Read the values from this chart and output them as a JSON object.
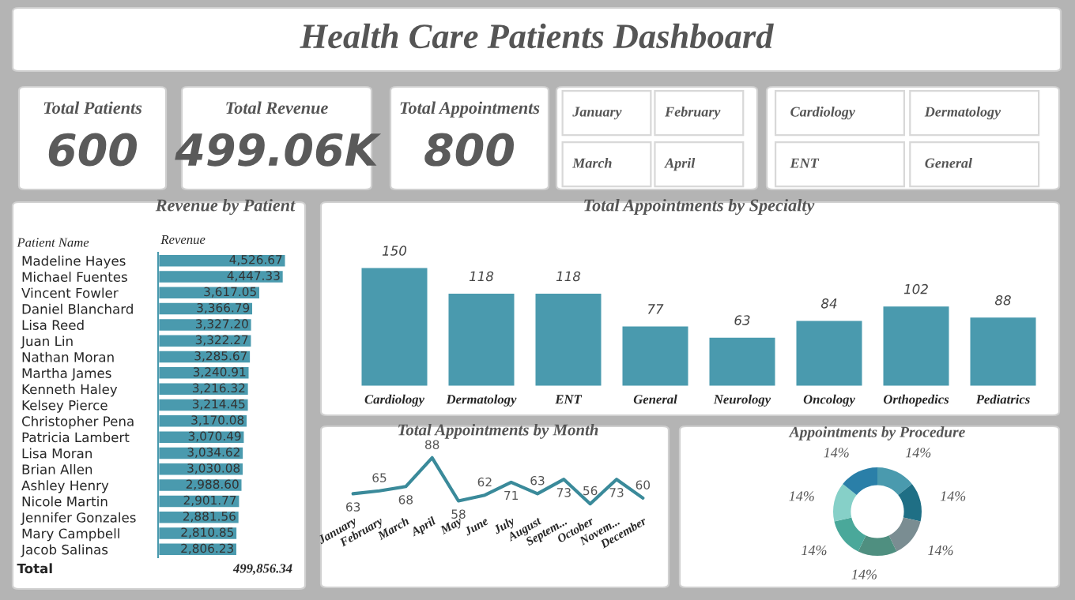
{
  "chart_data": [
    {
      "type": "other",
      "title": "Health Care Patients Dashboard"
    },
    {
      "type": "other",
      "title": "Total Patients",
      "annotations": [
        "600"
      ]
    },
    {
      "type": "other",
      "title": "Total Revenue",
      "annotations": [
        "499.06K"
      ]
    },
    {
      "type": "other",
      "title": "Total Appointments",
      "annotations": [
        "800"
      ]
    },
    {
      "type": "other",
      "annotations": [
        "January",
        "February",
        "March",
        "April"
      ]
    },
    {
      "type": "other",
      "annotations": [
        "Cardiology",
        "Dermatology",
        "ENT",
        "General"
      ]
    },
    {
      "type": "bar",
      "orientation": "horizontal",
      "title": "Revenue by Patient",
      "ylabel": "Patient Name",
      "xlabel": "Revenue",
      "color": "#4a9aae",
      "categories": [
        "Madeline Hayes",
        "Michael Fuentes",
        "Vincent Fowler",
        "Daniel Blanchard",
        "Lisa Reed",
        "Juan Lin",
        "Nathan Moran",
        "Martha James",
        "Kenneth Haley",
        "Kelsey Pierce",
        "Christopher Pena",
        "Patricia Lambert",
        "Lisa Moran",
        "Brian Allen",
        "Ashley Henry",
        "Nicole Martin",
        "Jennifer Gonzales",
        "Mary Campbell",
        "Jacob Salinas"
      ],
      "values": [
        4526.67,
        4447.33,
        3617.05,
        3366.79,
        3327.2,
        3322.27,
        3285.67,
        3240.91,
        3216.32,
        3214.45,
        3170.08,
        3070.49,
        3034.62,
        3030.08,
        2988.6,
        2901.77,
        2881.56,
        2810.85,
        2806.23
      ],
      "value_labels": [
        "4,526.67",
        "4,447.33",
        "3,617.05",
        "3,366.79",
        "3,327.20",
        "3,322.27",
        "3,285.67",
        "3,240.91",
        "3,216.32",
        "3,214.45",
        "3,170.08",
        "3,070.49",
        "3,034.62",
        "3,030.08",
        "2,988.60",
        "2,901.77",
        "2,881.56",
        "2,810.85",
        "2,806.23"
      ],
      "annotations": [
        "Total",
        "499,856.34"
      ]
    },
    {
      "type": "bar",
      "title": "Total Appointments by Specialty",
      "color": "#4a9aae",
      "data_labels": true,
      "categories": [
        "Cardiology",
        "Dermatology",
        "ENT",
        "General",
        "Neurology",
        "Oncology",
        "Orthopedics",
        "Pediatrics"
      ],
      "values": [
        150,
        118,
        118,
        77,
        63,
        84,
        102,
        88
      ]
    },
    {
      "type": "line",
      "title": "Total Appointments by Month",
      "color": "#3a8a9a",
      "data_labels": true,
      "marker": "none",
      "line_style": "solid",
      "categories": [
        "January",
        "February",
        "March",
        "April",
        "May",
        "June",
        "July",
        "August",
        "Septem...",
        "October",
        "Novem...",
        "December"
      ],
      "values": [
        63,
        65,
        68,
        88,
        58,
        62,
        71,
        63,
        73,
        56,
        73,
        60
      ]
    },
    {
      "type": "donut",
      "title": "Appointments by Procedure",
      "categories": [
        null,
        null,
        null,
        null,
        null,
        null,
        null
      ],
      "values": [
        14,
        14,
        14,
        14,
        14,
        14,
        14
      ],
      "value_labels": [
        "14%",
        "14%",
        "14%",
        "14%",
        "14%",
        "14%",
        "14%"
      ],
      "colors": [
        "#4a9aae",
        "#1f6f85",
        "#7a8d92",
        "#4f8f80",
        "#4aa89a",
        "#86d0c8",
        "#2a7fa8"
      ]
    }
  ]
}
